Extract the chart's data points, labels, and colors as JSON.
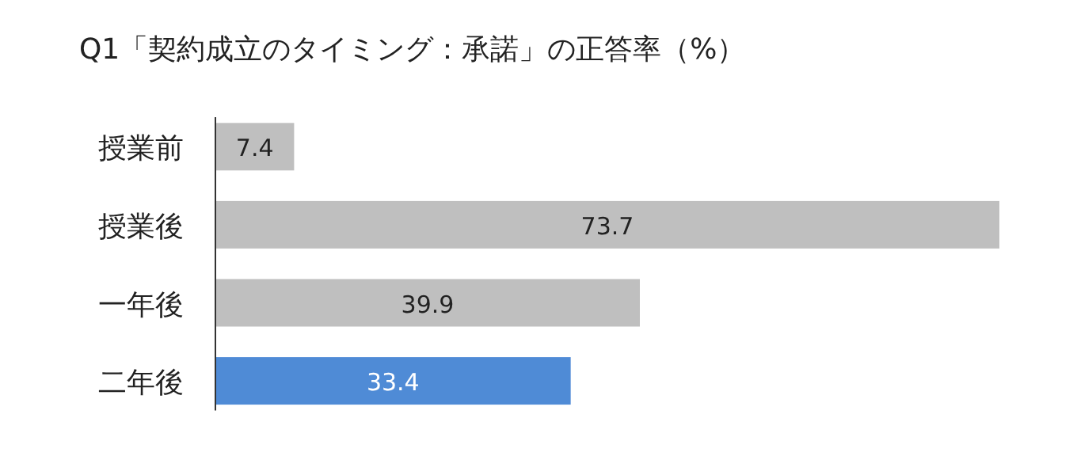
{
  "chart_data": {
    "type": "bar",
    "orientation": "horizontal",
    "title": "Q1「契約成立のタイミング：承諾」の正答率（%）",
    "categories": [
      "授業前",
      "授業後",
      "一年後",
      "二年後"
    ],
    "values": [
      7.4,
      73.7,
      39.9,
      33.4
    ],
    "colors": [
      "#bfbfbf",
      "#bfbfbf",
      "#bfbfbf",
      "#4f8bd6"
    ],
    "data_labels": true
  }
}
